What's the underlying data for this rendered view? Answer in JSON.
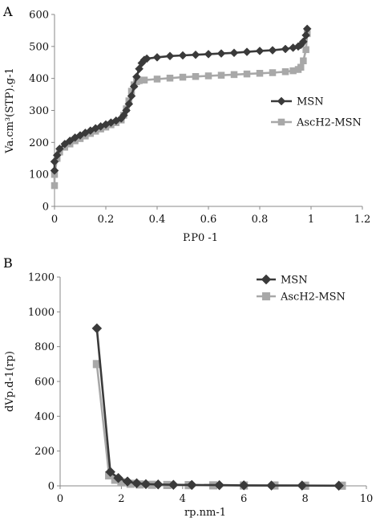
{
  "chart_data": [
    {
      "panel": "A",
      "type": "line",
      "title": "",
      "xlabel": "P.P0 -1",
      "ylabel": "Va.cm³(STP).g-1",
      "xlim": [
        0,
        1.2
      ],
      "ylim": [
        0,
        600
      ],
      "x_ticks": [
        "0",
        "0.2",
        "0.4",
        "0.6",
        "0.8",
        "1",
        "1.2"
      ],
      "y_ticks": [
        "0",
        "100",
        "200",
        "300",
        "400",
        "500",
        "600"
      ],
      "grid": false,
      "legend_position": "right-middle",
      "series": [
        {
          "name": "MSN",
          "color": "#3a3a3a",
          "marker": "diamond",
          "x": [
            0.0,
            0.0,
            0.01,
            0.02,
            0.04,
            0.06,
            0.08,
            0.1,
            0.12,
            0.14,
            0.16,
            0.18,
            0.2,
            0.22,
            0.24,
            0.26,
            0.27,
            0.28,
            0.29,
            0.3,
            0.31,
            0.32,
            0.33,
            0.34,
            0.35,
            0.36,
            0.4,
            0.45,
            0.5,
            0.55,
            0.6,
            0.65,
            0.7,
            0.75,
            0.8,
            0.85,
            0.9,
            0.93,
            0.95,
            0.96,
            0.97,
            0.98,
            0.985
          ],
          "y": [
            112,
            140,
            160,
            180,
            195,
            205,
            215,
            222,
            230,
            237,
            244,
            250,
            256,
            262,
            268,
            275,
            285,
            300,
            320,
            345,
            375,
            405,
            430,
            448,
            458,
            462,
            466,
            470,
            472,
            474,
            476,
            478,
            480,
            483,
            486,
            488,
            492,
            496,
            500,
            505,
            515,
            535,
            555
          ]
        },
        {
          "name": "AscH2-MSN",
          "color": "#a8a8a8",
          "marker": "square",
          "x": [
            0.0,
            0.0,
            0.01,
            0.02,
            0.04,
            0.06,
            0.08,
            0.1,
            0.12,
            0.14,
            0.16,
            0.18,
            0.2,
            0.22,
            0.24,
            0.26,
            0.27,
            0.28,
            0.29,
            0.3,
            0.31,
            0.32,
            0.33,
            0.35,
            0.4,
            0.45,
            0.5,
            0.55,
            0.6,
            0.65,
            0.7,
            0.75,
            0.8,
            0.85,
            0.9,
            0.93,
            0.95,
            0.96,
            0.97,
            0.98,
            0.985
          ],
          "y": [
            65,
            100,
            150,
            170,
            185,
            195,
            205,
            212,
            220,
            228,
            235,
            242,
            248,
            255,
            262,
            270,
            285,
            305,
            330,
            360,
            380,
            390,
            393,
            395,
            398,
            401,
            404,
            406,
            408,
            410,
            412,
            414,
            416,
            418,
            421,
            424,
            428,
            435,
            455,
            490,
            540
          ]
        }
      ]
    },
    {
      "panel": "B",
      "type": "line",
      "title": "",
      "xlabel": "rp.nm-1",
      "ylabel": "dVp.d-1(rp)",
      "xlim": [
        0,
        10
      ],
      "ylim": [
        0,
        1200
      ],
      "x_ticks": [
        "0",
        "2",
        "4",
        "6",
        "8",
        "10"
      ],
      "y_ticks": [
        "0",
        "200",
        "400",
        "600",
        "800",
        "1000",
        "1200"
      ],
      "grid": false,
      "legend_position": "top-right",
      "series": [
        {
          "name": "MSN",
          "color": "#3a3a3a",
          "marker": "diamond",
          "x": [
            1.2,
            1.64,
            1.9,
            2.2,
            2.5,
            2.8,
            3.2,
            3.7,
            4.3,
            5.2,
            6.0,
            6.9,
            7.9,
            9.1
          ],
          "y": [
            905,
            80,
            45,
            25,
            15,
            10,
            8,
            6,
            5,
            4,
            3,
            2,
            2,
            1
          ]
        },
        {
          "name": "AscH2-MSN",
          "color": "#a8a8a8",
          "marker": "square",
          "x": [
            1.2,
            1.6,
            1.8,
            2.0,
            2.3,
            2.6,
            3.0,
            3.5,
            4.2,
            5.0,
            6.0,
            7.0,
            8.0,
            9.2
          ],
          "y": [
            700,
            60,
            35,
            20,
            12,
            8,
            6,
            5,
            4,
            3,
            2,
            2,
            1,
            1
          ]
        }
      ]
    }
  ],
  "labels": {
    "panel_a": "A",
    "panel_b": "B"
  }
}
